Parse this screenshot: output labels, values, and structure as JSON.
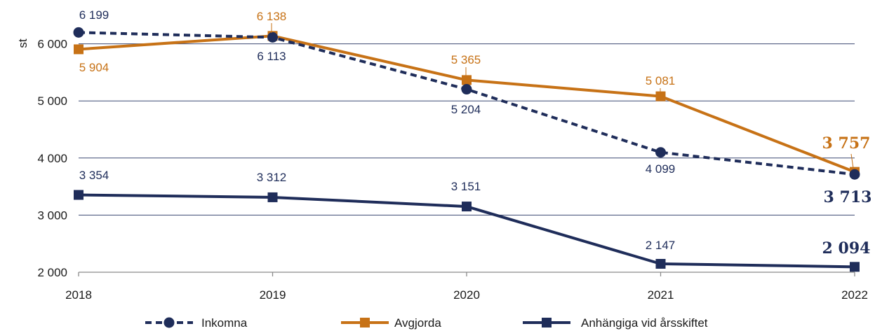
{
  "chart_data": {
    "type": "line",
    "ylabel": "st",
    "xlabel": "",
    "title": "",
    "categories": [
      "2018",
      "2019",
      "2020",
      "2021",
      "2022"
    ],
    "ylim": [
      2000,
      6400
    ],
    "yticks": [
      2000,
      3000,
      4000,
      5000,
      6000
    ],
    "ytick_labels": [
      "2 000",
      "3 000",
      "4 000",
      "5 000",
      "6 000"
    ],
    "grid": "horizontal",
    "legend_position": "bottom",
    "series": [
      {
        "name": "Inkomna",
        "values": [
          6199,
          6113,
          5204,
          4099,
          3713
        ],
        "labels": [
          "6 199",
          "6 113",
          "5 204",
          "4 099",
          "3 713"
        ],
        "color": "#1f2d5a",
        "line_style": "dashed",
        "marker": "circle"
      },
      {
        "name": "Avgjorda",
        "values": [
          5904,
          6138,
          5365,
          5081,
          3757
        ],
        "labels": [
          "5 904",
          "6 138",
          "5 365",
          "5 081",
          "3 757"
        ],
        "color": "#c77216",
        "line_style": "solid",
        "marker": "square"
      },
      {
        "name": "Anhängiga vid årsskiftet",
        "values": [
          3354,
          3312,
          3151,
          2147,
          2094
        ],
        "labels": [
          "3 354",
          "3 312",
          "3 151",
          "2 147",
          "2 094"
        ],
        "color": "#1f2d5a",
        "line_style": "solid",
        "marker": "square"
      }
    ]
  }
}
